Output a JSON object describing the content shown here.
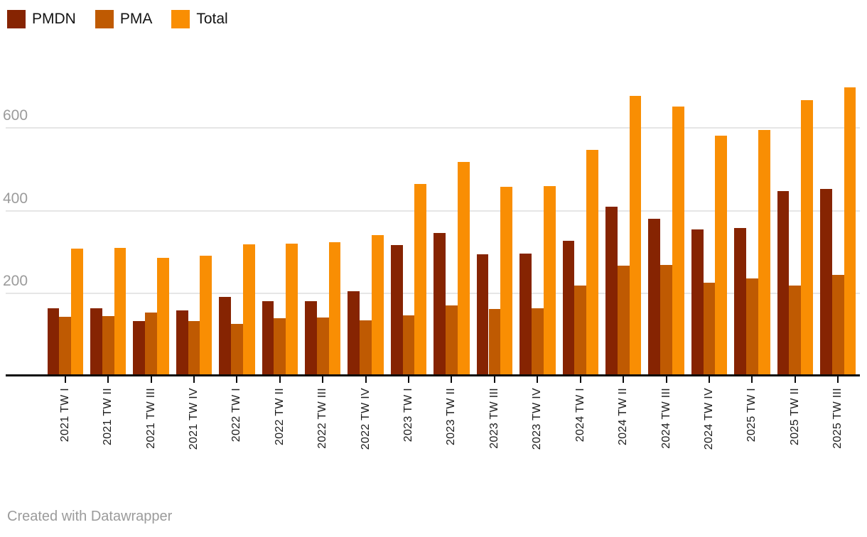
{
  "legend": {
    "items": [
      {
        "label": "PMDN",
        "color": "#862402"
      },
      {
        "label": "PMA",
        "color": "#bf5a02"
      },
      {
        "label": "Total",
        "color": "#f98e03"
      }
    ]
  },
  "footer": {
    "text": "Created with Datawrapper"
  },
  "chart_data": {
    "type": "bar",
    "title": "",
    "xlabel": "",
    "ylabel": "",
    "categories": [
      "2021 TW I",
      "2021 TW II",
      "2021 TW III",
      "2021 TW IV",
      "2022 TW I",
      "2022 TW II",
      "2022 TW III",
      "2022 TW IV",
      "2023 TW I",
      "2023 TW II",
      "2023 TW III",
      "2023 TW IV",
      "2024 TW I",
      "2024 TW II",
      "2024 TW III",
      "2024 TW IV",
      "2025 TW I",
      "2025 TW II",
      "2025 TW III"
    ],
    "series": [
      {
        "name": "PMDN",
        "color": "#862402",
        "values": [
          164,
          165,
          133,
          159,
          192,
          181,
          182,
          206,
          317,
          346,
          295,
          296,
          328,
          410,
          381,
          355,
          358,
          448,
          452
        ]
      },
      {
        "name": "PMA",
        "color": "#bf5a02",
        "values": [
          144,
          145,
          154,
          133,
          127,
          140,
          142,
          135,
          147,
          171,
          163,
          164,
          219,
          268,
          270,
          226,
          237,
          219,
          246
        ]
      },
      {
        "name": "Total",
        "color": "#f98e03",
        "values": [
          308,
          310,
          287,
          292,
          319,
          321,
          324,
          341,
          464,
          517,
          458,
          460,
          547,
          678,
          651,
          581,
          595,
          667,
          698
        ]
      }
    ],
    "ylim": [
      0,
      700
    ],
    "yticks": [
      200,
      400,
      600
    ],
    "grid": "horizontal",
    "legend_position": "top-left",
    "x_tick_rotation": 90,
    "bar_layout": "grouped"
  }
}
